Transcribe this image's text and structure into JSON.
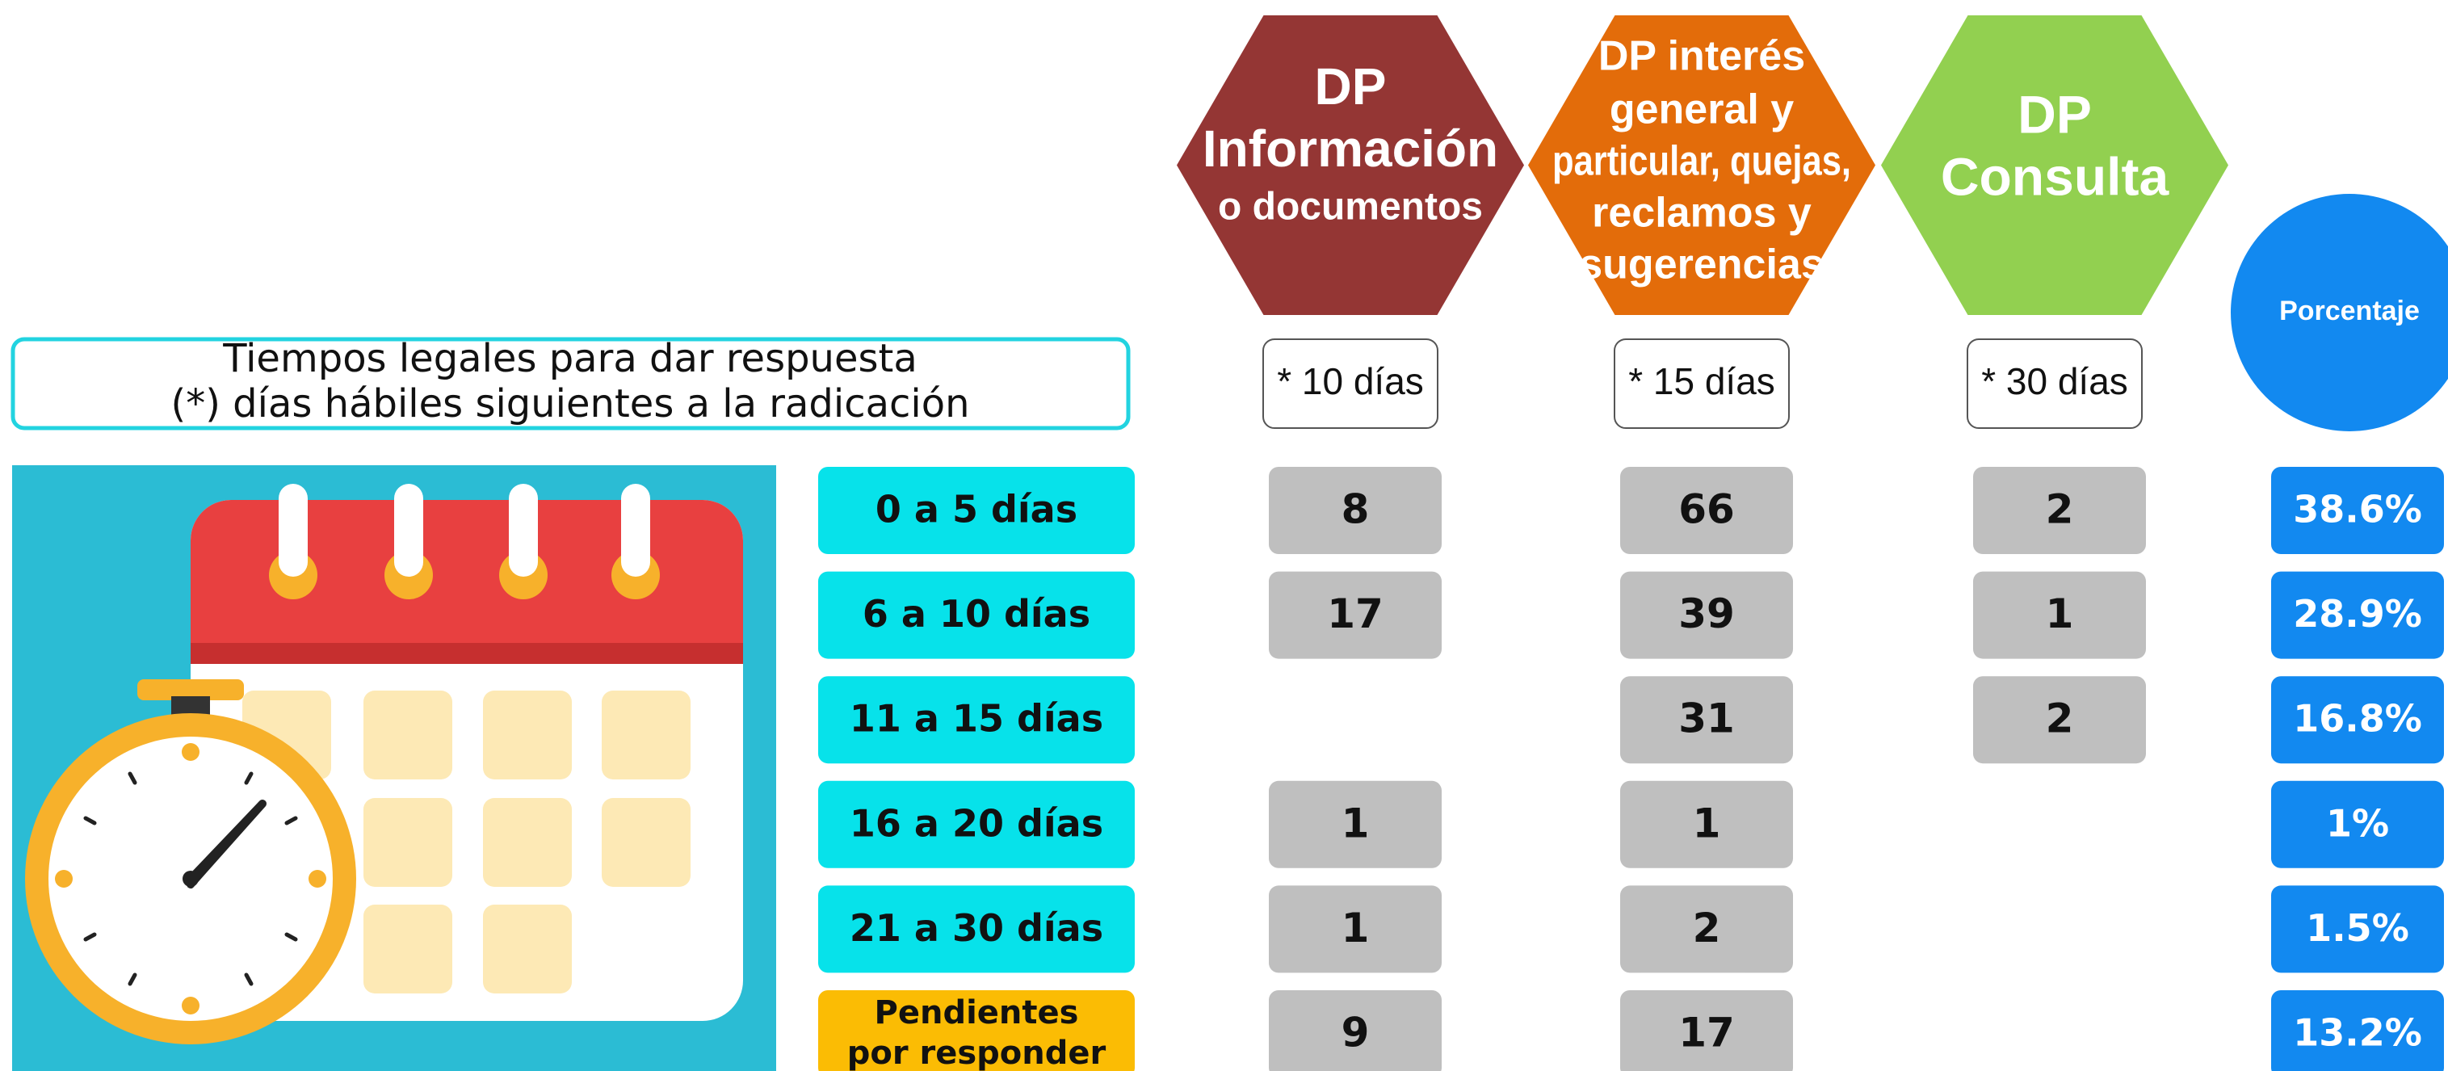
{
  "legal_times": {
    "lines": [
      "Tiempos legales para dar respuesta",
      "(*) días hábiles siguientes a la radicación"
    ]
  },
  "columns": [
    {
      "title_lines": [
        "DP",
        "Información",
        "o documentos"
      ],
      "deadline": "* 10 días",
      "color": "#943634"
    },
    {
      "title_lines": [
        "DP interés",
        "general y",
        "particular, quejas,",
        "reclamos y",
        "sugerencias"
      ],
      "deadline": "* 15 días",
      "color": "#e36c0a"
    },
    {
      "title_lines": [
        "DP",
        "Consulta"
      ],
      "deadline": "* 30 días",
      "color": "#92d050"
    }
  ],
  "percentage_header": "Porcentaje",
  "rows": [
    {
      "label": [
        "0 a 5 días"
      ],
      "values": [
        8,
        66,
        2
      ],
      "percentage": "38.6%"
    },
    {
      "label": [
        "6 a 10 días"
      ],
      "values": [
        17,
        39,
        1
      ],
      "percentage": "28.9%"
    },
    {
      "label": [
        "11 a 15 días"
      ],
      "values": [
        null,
        31,
        2
      ],
      "percentage": "16.8%"
    },
    {
      "label": [
        "16 a 20 días"
      ],
      "values": [
        1,
        1,
        null
      ],
      "percentage": "1%"
    },
    {
      "label": [
        "21 a 30 días"
      ],
      "values": [
        1,
        2,
        null
      ],
      "percentage": "1.5%"
    },
    {
      "label": [
        "Pendientes",
        "por responder"
      ],
      "values": [
        9,
        17,
        null
      ],
      "percentage": "13.2%"
    }
  ]
}
